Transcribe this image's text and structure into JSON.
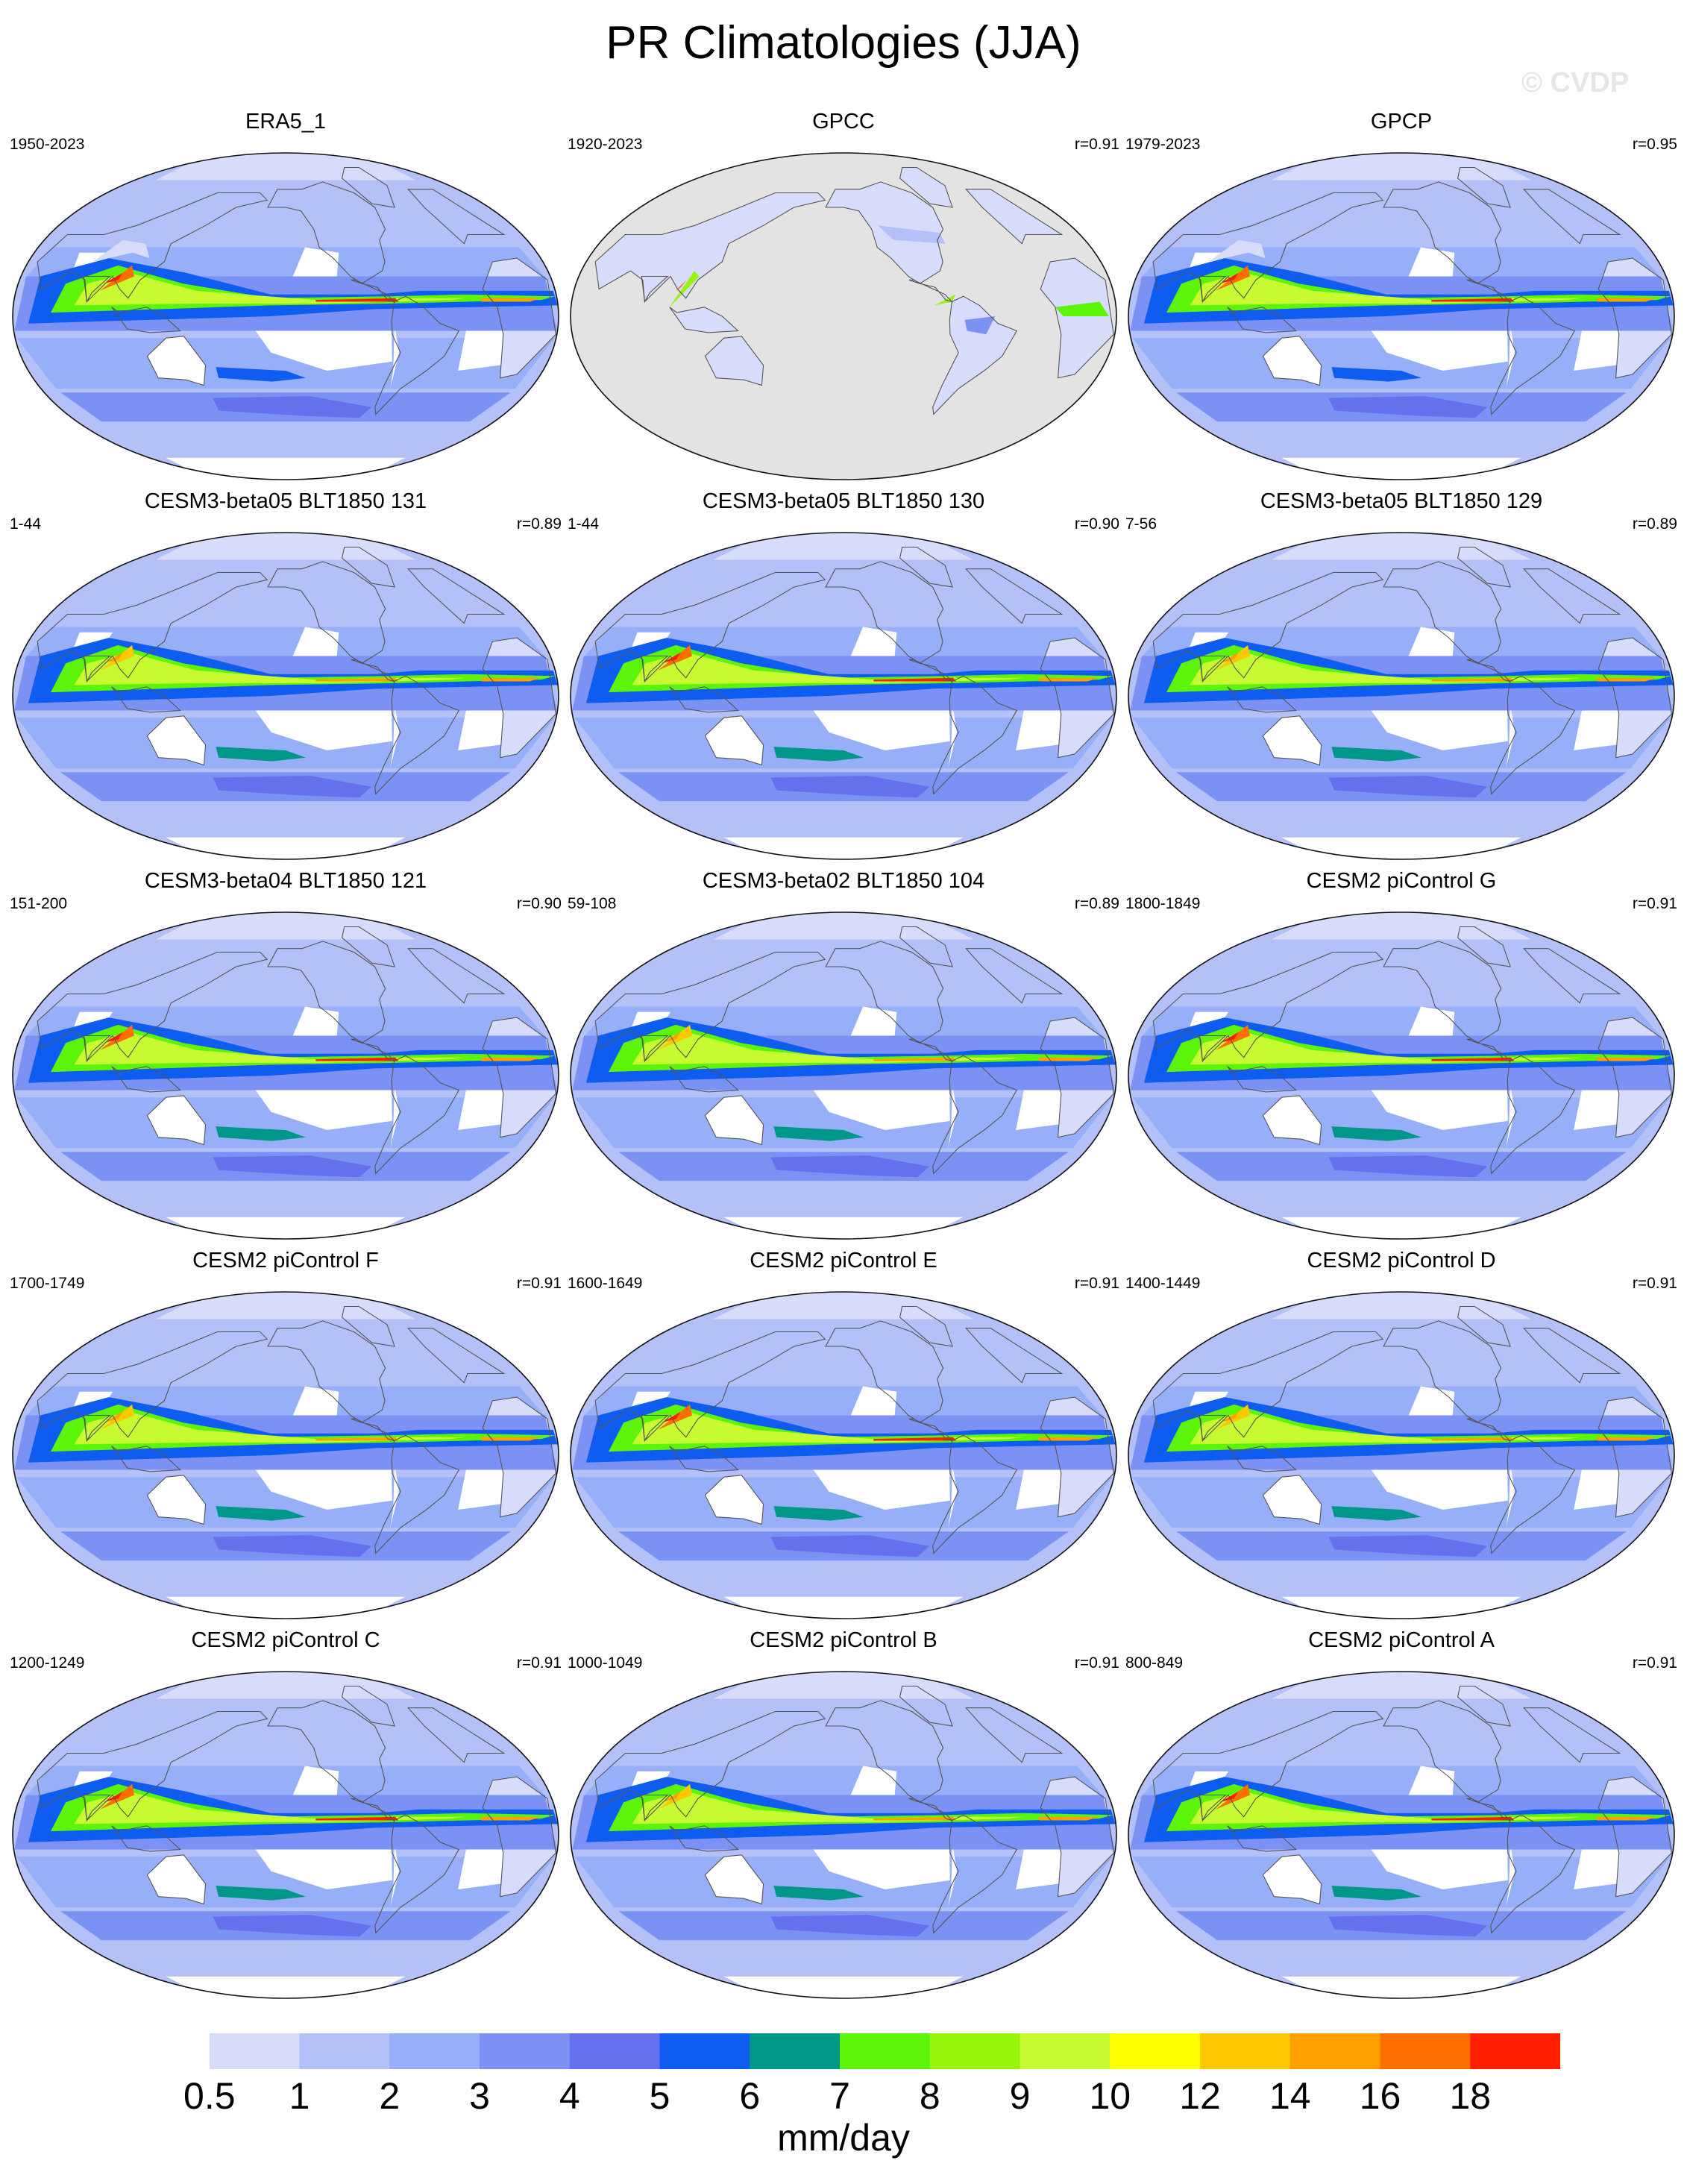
{
  "title": "PR Climatologies (JJA)",
  "watermark": "© CVDP",
  "panels": [
    {
      "name": "ERA5_1",
      "years": "1950-2023",
      "r": "",
      "kind": "obs"
    },
    {
      "name": "GPCC",
      "years": "1920-2023",
      "r": "r=0.91",
      "kind": "land"
    },
    {
      "name": "GPCP",
      "years": "1979-2023",
      "r": "r=0.95",
      "kind": "obs"
    },
    {
      "name": "CESM3-beta05 BLT1850 131",
      "years": "1-44",
      "r": "r=0.89",
      "kind": "model"
    },
    {
      "name": "CESM3-beta05 BLT1850 130",
      "years": "1-44",
      "r": "r=0.90",
      "kind": "model"
    },
    {
      "name": "CESM3-beta05 BLT1850 129",
      "years": "7-56",
      "r": "r=0.89",
      "kind": "model"
    },
    {
      "name": "CESM3-beta04 BLT1850 121",
      "years": "151-200",
      "r": "r=0.90",
      "kind": "model"
    },
    {
      "name": "CESM3-beta02 BLT1850 104",
      "years": "59-108",
      "r": "r=0.89",
      "kind": "model"
    },
    {
      "name": "CESM2 piControl G",
      "years": "1800-1849",
      "r": "r=0.91",
      "kind": "model"
    },
    {
      "name": "CESM2 piControl F",
      "years": "1700-1749",
      "r": "r=0.91",
      "kind": "model"
    },
    {
      "name": "CESM2 piControl E",
      "years": "1600-1649",
      "r": "r=0.91",
      "kind": "model"
    },
    {
      "name": "CESM2 piControl D",
      "years": "1400-1449",
      "r": "r=0.91",
      "kind": "model"
    },
    {
      "name": "CESM2 piControl C",
      "years": "1200-1249",
      "r": "r=0.91",
      "kind": "model"
    },
    {
      "name": "CESM2 piControl B",
      "years": "1000-1049",
      "r": "r=0.91",
      "kind": "model"
    },
    {
      "name": "CESM2 piControl A",
      "years": "800-849",
      "r": "r=0.91",
      "kind": "model"
    }
  ],
  "colorbar": {
    "levels": [
      "0.5",
      "1",
      "2",
      "3",
      "4",
      "5",
      "6",
      "7",
      "8",
      "9",
      "10",
      "12",
      "14",
      "16",
      "18"
    ],
    "colors": [
      "#ffffff",
      "#d7dcfa",
      "#b4c0f8",
      "#96aff8",
      "#7b91f4",
      "#6470ec",
      "#0f5cf0",
      "#009688",
      "#5cf50a",
      "#96f50a",
      "#c8fa32",
      "#ffff00",
      "#ffc800",
      "#ffa000",
      "#ff6e00",
      "#ff1e00"
    ],
    "units": "mm/day"
  },
  "colors": {
    "land_mask": "#e3e3e3",
    "coastline": "#555555"
  }
}
